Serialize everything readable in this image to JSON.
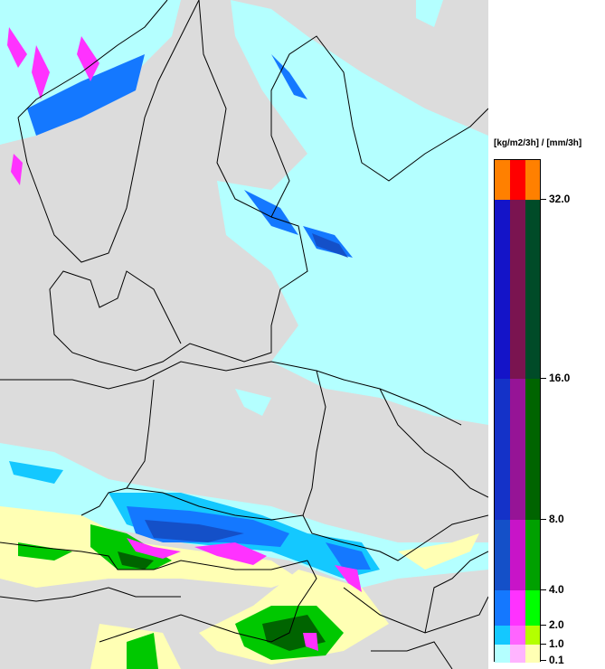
{
  "legend": {
    "unit": "[kg/m2/3h] / [mm/3h]",
    "thresholds": [
      "32.0",
      "16.0",
      "8.0",
      "4.0",
      "2.0",
      "1.0",
      "0.1"
    ],
    "bands": [
      {
        "range": ">32",
        "colors": [
          "#ff8000",
          "#ff0000",
          "#ff8000"
        ]
      },
      {
        "range": "16-32",
        "colors": [
          "#1414c8",
          "#7a1450",
          "#004b28"
        ]
      },
      {
        "range": "8-16",
        "colors": [
          "#1432c8",
          "#961496",
          "#006400"
        ]
      },
      {
        "range": "4-8",
        "colors": [
          "#1450c8",
          "#c814c8",
          "#00a000"
        ]
      },
      {
        "range": "2-4",
        "colors": [
          "#1478ff",
          "#ff32ff",
          "#00ff00"
        ]
      },
      {
        "range": "1-2",
        "colors": [
          "#14c8ff",
          "#ff64ff",
          "#b4ff00"
        ]
      },
      {
        "range": "0.1-1",
        "colors": [
          "#b4ffff",
          "#ffb4ff",
          "#ffffb4"
        ]
      }
    ]
  },
  "map": {
    "background": "#dcdcdc",
    "border_color": "#000000"
  }
}
